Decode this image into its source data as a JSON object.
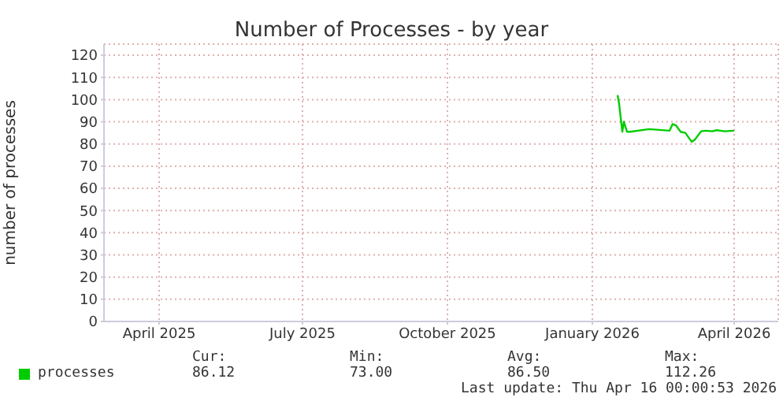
{
  "chart_data": {
    "type": "line",
    "title": "Number of Processes - by year",
    "ylabel": "number of processes",
    "x": [
      "2026-02-01",
      "2026-02-02",
      "2026-02-04",
      "2026-02-05",
      "2026-02-07",
      "2026-02-09",
      "2026-02-21",
      "2026-03-06",
      "2026-03-08",
      "2026-03-10",
      "2026-03-13",
      "2026-03-16",
      "2026-03-20",
      "2026-03-22",
      "2026-03-26",
      "2026-03-29",
      "2026-04-02",
      "2026-04-05",
      "2026-04-10",
      "2026-04-16"
    ],
    "series": [
      {
        "name": "processes",
        "color": "#00cc00",
        "values": [
          102,
          98,
          85.5,
          90,
          85.5,
          85.5,
          86.7,
          86,
          89,
          88.4,
          85.5,
          85,
          81,
          81.9,
          85.7,
          86,
          85.7,
          86.2,
          85.7,
          86
        ]
      }
    ],
    "xlim": [
      "2025-03-12",
      "2026-05-14"
    ],
    "xticks": [
      {
        "value": "2025-04-16",
        "label": "April 2025"
      },
      {
        "value": "2025-07-16",
        "label": "July 2025"
      },
      {
        "value": "2025-10-16",
        "label": "October 2025"
      },
      {
        "value": "2026-01-16",
        "label": "January 2026"
      },
      {
        "value": "2026-04-16",
        "label": "April 2026"
      }
    ],
    "ylim": [
      0,
      125
    ],
    "yticks": [
      0,
      10,
      20,
      30,
      40,
      50,
      60,
      70,
      80,
      90,
      100,
      110,
      120
    ],
    "grid": true,
    "legend": "bottom left",
    "marker": "none",
    "line_style": "solid",
    "annotations": [
      "Cur:",
      "Min:",
      "Avg:",
      "Max:",
      "86.12",
      "73.00",
      "86.50",
      "112.26",
      "Last update: Thu Apr 16 00:00:53 2026"
    ]
  }
}
